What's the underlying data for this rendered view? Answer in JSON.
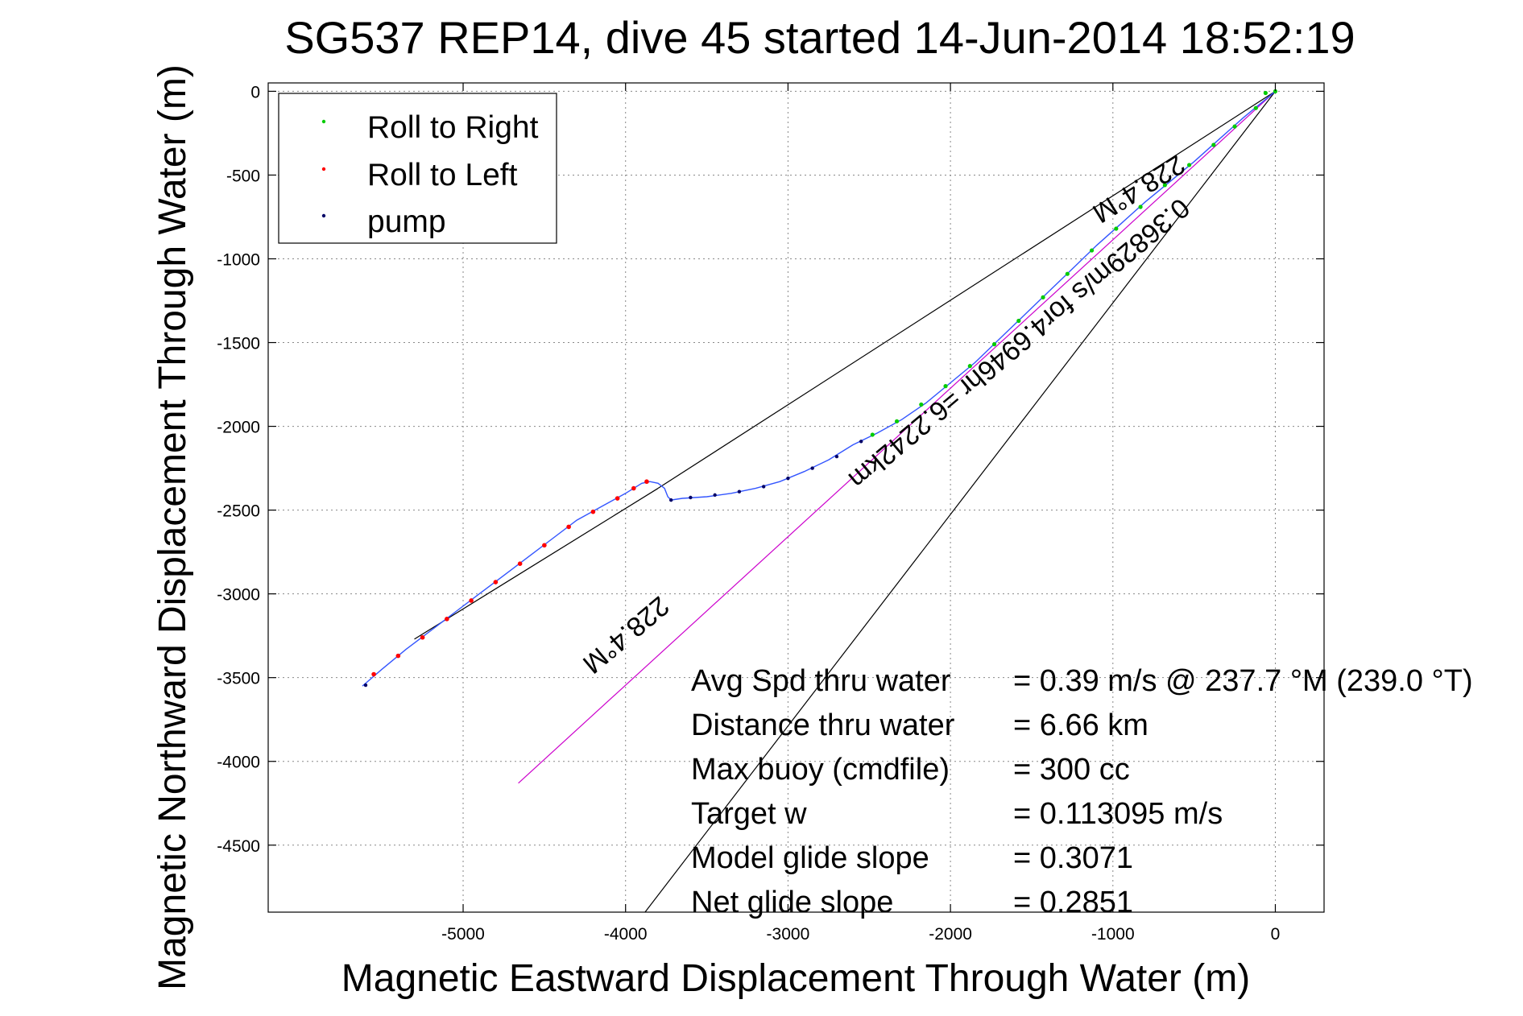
{
  "chart_data": {
    "type": "line",
    "title": "SG537 REP14, dive 45 started 14-Jun-2014 18:52:19",
    "xlabel": "Magnetic Eastward Displacement Through Water (m)",
    "ylabel": "Magnetic Northward Displacement Through Water (m)",
    "xlim": [
      -6200,
      300
    ],
    "ylim": [
      -4900,
      50
    ],
    "xticks": [
      "-5000",
      "-4000",
      "-3000",
      "-2000",
      "-1000",
      "0"
    ],
    "xtick_values": [
      -5000,
      -4000,
      -3000,
      -2000,
      -1000,
      0
    ],
    "yticks": [
      "0",
      "-500",
      "-1000",
      "-1500",
      "-2000",
      "-2500",
      "-3000",
      "-3500",
      "-4000",
      "-4500"
    ],
    "ytick_values": [
      0,
      -500,
      -1000,
      -1500,
      -2000,
      -2500,
      -3000,
      -3500,
      -4000,
      -4500
    ],
    "grid": true,
    "legend_position": "top-left",
    "legend": [
      {
        "label": "Roll to Right",
        "color": "#00cc00"
      },
      {
        "label": "Roll to Left",
        "color": "#ff0000"
      },
      {
        "label": "pump",
        "color": "#000066"
      }
    ],
    "track": [
      [
        0,
        0
      ],
      [
        -100,
        -80
      ],
      [
        -200,
        -160
      ],
      [
        -350,
        -290
      ],
      [
        -500,
        -420
      ],
      [
        -650,
        -540
      ],
      [
        -800,
        -660
      ],
      [
        -950,
        -790
      ],
      [
        -1100,
        -920
      ],
      [
        -1250,
        -1060
      ],
      [
        -1400,
        -1200
      ],
      [
        -1550,
        -1340
      ],
      [
        -1700,
        -1480
      ],
      [
        -1850,
        -1620
      ],
      [
        -2000,
        -1740
      ],
      [
        -2150,
        -1860
      ],
      [
        -2300,
        -1960
      ],
      [
        -2450,
        -2040
      ],
      [
        -2600,
        -2110
      ],
      [
        -2750,
        -2200
      ],
      [
        -2900,
        -2270
      ],
      [
        -3050,
        -2330
      ],
      [
        -3200,
        -2370
      ],
      [
        -3350,
        -2400
      ],
      [
        -3500,
        -2420
      ],
      [
        -3650,
        -2430
      ],
      [
        -3720,
        -2440
      ],
      [
        -3740,
        -2420
      ],
      [
        -3760,
        -2370
      ],
      [
        -3800,
        -2340
      ],
      [
        -3850,
        -2330
      ],
      [
        -3900,
        -2340
      ],
      [
        -4000,
        -2400
      ],
      [
        -4150,
        -2480
      ],
      [
        -4300,
        -2560
      ],
      [
        -4450,
        -2670
      ],
      [
        -4600,
        -2780
      ],
      [
        -4750,
        -2890
      ],
      [
        -4900,
        -3000
      ],
      [
        -5050,
        -3110
      ],
      [
        -5200,
        -3220
      ],
      [
        -5350,
        -3330
      ],
      [
        -5500,
        -3450
      ],
      [
        -5620,
        -3550
      ]
    ],
    "roll_right_points": [
      [
        0,
        0
      ],
      [
        -60,
        -10
      ],
      [
        -120,
        -100
      ],
      [
        -250,
        -210
      ],
      [
        -380,
        -320
      ],
      [
        -530,
        -440
      ],
      [
        -680,
        -560
      ],
      [
        -830,
        -690
      ],
      [
        -980,
        -820
      ],
      [
        -1130,
        -950
      ],
      [
        -1280,
        -1090
      ],
      [
        -1430,
        -1230
      ],
      [
        -1580,
        -1370
      ],
      [
        -1730,
        -1510
      ],
      [
        -1880,
        -1640
      ],
      [
        -2030,
        -1760
      ],
      [
        -2180,
        -1870
      ],
      [
        -2330,
        -1970
      ],
      [
        -2480,
        -2050
      ]
    ],
    "roll_left_points": [
      [
        -3870,
        -2330
      ],
      [
        -3950,
        -2370
      ],
      [
        -4050,
        -2430
      ],
      [
        -4200,
        -2510
      ],
      [
        -4350,
        -2600
      ],
      [
        -4500,
        -2710
      ],
      [
        -4650,
        -2820
      ],
      [
        -4800,
        -2930
      ],
      [
        -4950,
        -3040
      ],
      [
        -5100,
        -3150
      ],
      [
        -5250,
        -3260
      ],
      [
        -5400,
        -3370
      ],
      [
        -5550,
        -3480
      ]
    ],
    "pump_points": [
      [
        -2550,
        -2090
      ],
      [
        -2700,
        -2180
      ],
      [
        -2850,
        -2250
      ],
      [
        -3000,
        -2310
      ],
      [
        -3150,
        -2360
      ],
      [
        -3300,
        -2390
      ],
      [
        -3450,
        -2410
      ],
      [
        -3600,
        -2425
      ],
      [
        -3720,
        -2440
      ],
      [
        -5600,
        -3545
      ]
    ],
    "heading_lines": [
      {
        "from": [
          0,
          0
        ],
        "to": [
          -3800,
          -2370
        ],
        "color": "#000000"
      },
      {
        "from": [
          -3800,
          -2370
        ],
        "to": [
          -5300,
          -3270
        ],
        "color": "#000000"
      },
      {
        "from": [
          0,
          0
        ],
        "to": [
          -4660,
          -4130
        ],
        "color": "#cc00cc"
      },
      {
        "from": [
          0,
          0
        ],
        "to": [
          -3880,
          -4900
        ],
        "color": "#000000"
      }
    ],
    "annotations": {
      "heading_upper": "228.4°M",
      "speed_line": "0.36829m/s for4.6946hr =6.2242km",
      "heading_lower": "228.4°M"
    },
    "stats": [
      {
        "label": "Avg Spd thru water",
        "value": "=  0.39 m/s @ 237.7 °M (239.0 °T)"
      },
      {
        "label": "Distance thru water",
        "value": "=  6.66 km"
      },
      {
        "label": "Max buoy (cmdfile)",
        "value": "= 300 cc"
      },
      {
        "label": "Target w",
        "value": "= 0.113095 m/s"
      },
      {
        "label": "Model glide slope",
        "value": "= 0.3071"
      },
      {
        "label": "Net glide slope",
        "value": "= 0.2851"
      }
    ]
  }
}
